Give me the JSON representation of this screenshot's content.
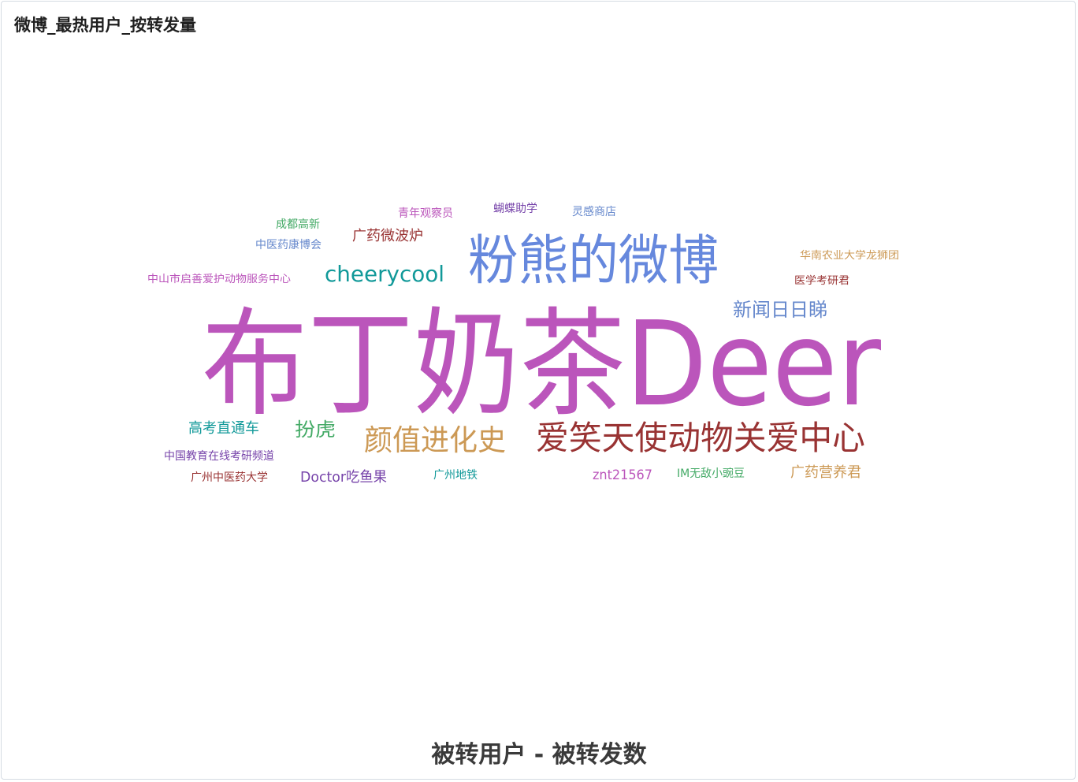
{
  "panel": {
    "title": "微博_最热用户_按转发量"
  },
  "chart_data": {
    "type": "wordcloud",
    "title": "被转用户 - 被转发数",
    "words": [
      {
        "text": "布丁奶茶Deer",
        "color": "#bb55bb",
        "rank": 1
      },
      {
        "text": "粉熊的微博",
        "color": "#6688dd",
        "rank": 2
      },
      {
        "text": "爱笑天使动物关爱中心",
        "color": "#993333",
        "rank": 3
      },
      {
        "text": "颜值进化史",
        "color": "#cc9955",
        "rank": 4
      },
      {
        "text": "cheerycool",
        "color": "#119999",
        "rank": 5
      },
      {
        "text": "新闻日日睇",
        "color": "#6688cc",
        "rank": 6
      },
      {
        "text": "扮虎",
        "color": "#44aa66",
        "rank": 7
      },
      {
        "text": "广药微波炉",
        "color": "#993333",
        "rank": 8
      },
      {
        "text": "高考直通车",
        "color": "#119999",
        "rank": 9
      },
      {
        "text": "Doctor吃鱼果",
        "color": "#7744aa",
        "rank": 10
      },
      {
        "text": "广药营养君",
        "color": "#cc9955",
        "rank": 11
      },
      {
        "text": "znt21567",
        "color": "#bb55bb",
        "rank": 12
      },
      {
        "text": "中国教育在线考研频道",
        "color": "#7744aa",
        "rank": 13
      },
      {
        "text": "广州中医药大学",
        "color": "#993333",
        "rank": 14
      },
      {
        "text": "中山市启善爱护动物服务中心",
        "color": "#bb55bb",
        "rank": 15
      },
      {
        "text": "中医药康博会",
        "color": "#6688cc",
        "rank": 16
      },
      {
        "text": "成都高新",
        "color": "#44aa66",
        "rank": 17
      },
      {
        "text": "青年观察员",
        "color": "#bb55bb",
        "rank": 18
      },
      {
        "text": "蝴蝶助学",
        "color": "#7744aa",
        "rank": 19
      },
      {
        "text": "灵感商店",
        "color": "#6688cc",
        "rank": 20
      },
      {
        "text": "华南农业大学龙狮团",
        "color": "#cc9955",
        "rank": 21
      },
      {
        "text": "医学考研君",
        "color": "#993333",
        "rank": 22
      },
      {
        "text": "广州地铁",
        "color": "#119999",
        "rank": 23
      },
      {
        "text": "IM无敌小豌豆",
        "color": "#44aa66",
        "rank": 24
      }
    ]
  }
}
